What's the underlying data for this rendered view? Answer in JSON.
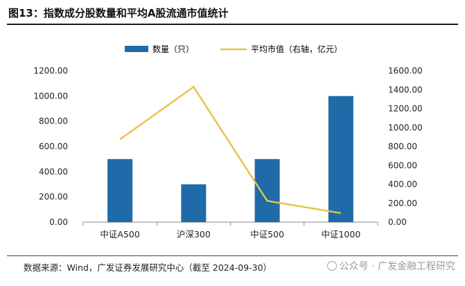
{
  "header": {
    "title": "图13：指数成分股数量和平均A股流通市值统计"
  },
  "footer": {
    "source": "数据来源：Wind，广发证券发展研究中心（截至 2024-09-30）",
    "watermark": "公众号 · 广发金融工程研究"
  },
  "colors": {
    "bar": "#1f6aa8",
    "line": "#e6c34a",
    "axis": "#8a8a8a"
  },
  "chart_data": {
    "type": "bar+line",
    "categories": [
      "中证A500",
      "沪深300",
      "中证500",
      "中证1000"
    ],
    "series": [
      {
        "name": "数量（只）",
        "kind": "bar",
        "axis": "left",
        "values": [
          500,
          300,
          500,
          1000
        ]
      },
      {
        "name": "平均市值（右轴，亿元）",
        "kind": "line",
        "axis": "right",
        "values": [
          875,
          1430,
          225,
          95
        ]
      }
    ],
    "y_left": {
      "min": 0,
      "max": 1200,
      "ticks": [
        "0.00",
        "200.00",
        "400.00",
        "600.00",
        "800.00",
        "1000.00",
        "1200.00"
      ]
    },
    "y_right": {
      "min": 0,
      "max": 1600,
      "ticks": [
        "0.00",
        "200.00",
        "400.00",
        "600.00",
        "800.00",
        "1000.00",
        "1200.00",
        "1400.00",
        "1600.00"
      ]
    },
    "legend_position": "top-center",
    "grid": false
  }
}
